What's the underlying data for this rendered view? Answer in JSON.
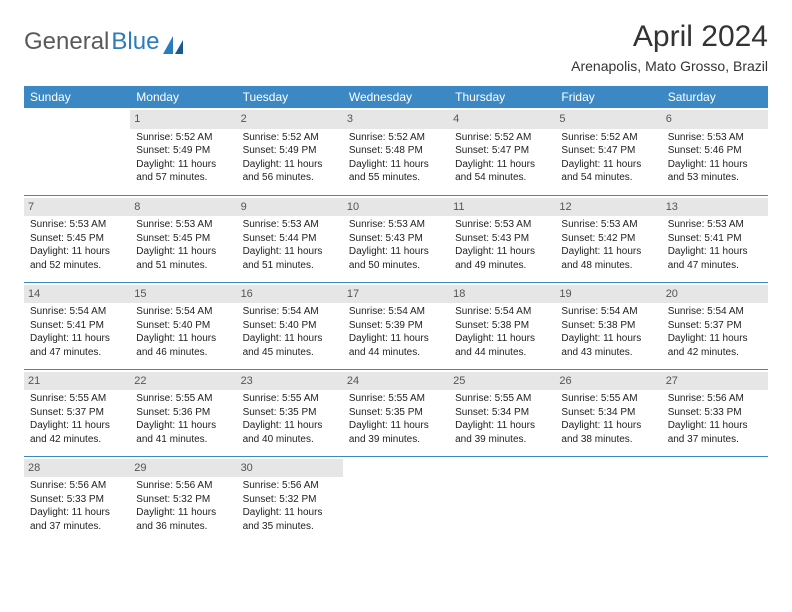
{
  "logo": {
    "text1": "General",
    "text2": "Blue"
  },
  "title": "April 2024",
  "subtitle": "Arenapolis, Mato Grosso, Brazil",
  "colors": {
    "header_bg": "#3b88c4",
    "header_fg": "#ffffff",
    "daynum_bg": "#e6e6e6",
    "row_border": "#3b88c4",
    "logo_blue": "#2b7bbf"
  },
  "day_headers": [
    "Sunday",
    "Monday",
    "Tuesday",
    "Wednesday",
    "Thursday",
    "Friday",
    "Saturday"
  ],
  "weeks": [
    [
      null,
      {
        "n": "1",
        "sr": "Sunrise: 5:52 AM",
        "ss": "Sunset: 5:49 PM",
        "dl1": "Daylight: 11 hours",
        "dl2": "and 57 minutes."
      },
      {
        "n": "2",
        "sr": "Sunrise: 5:52 AM",
        "ss": "Sunset: 5:49 PM",
        "dl1": "Daylight: 11 hours",
        "dl2": "and 56 minutes."
      },
      {
        "n": "3",
        "sr": "Sunrise: 5:52 AM",
        "ss": "Sunset: 5:48 PM",
        "dl1": "Daylight: 11 hours",
        "dl2": "and 55 minutes."
      },
      {
        "n": "4",
        "sr": "Sunrise: 5:52 AM",
        "ss": "Sunset: 5:47 PM",
        "dl1": "Daylight: 11 hours",
        "dl2": "and 54 minutes."
      },
      {
        "n": "5",
        "sr": "Sunrise: 5:52 AM",
        "ss": "Sunset: 5:47 PM",
        "dl1": "Daylight: 11 hours",
        "dl2": "and 54 minutes."
      },
      {
        "n": "6",
        "sr": "Sunrise: 5:53 AM",
        "ss": "Sunset: 5:46 PM",
        "dl1": "Daylight: 11 hours",
        "dl2": "and 53 minutes."
      }
    ],
    [
      {
        "n": "7",
        "sr": "Sunrise: 5:53 AM",
        "ss": "Sunset: 5:45 PM",
        "dl1": "Daylight: 11 hours",
        "dl2": "and 52 minutes."
      },
      {
        "n": "8",
        "sr": "Sunrise: 5:53 AM",
        "ss": "Sunset: 5:45 PM",
        "dl1": "Daylight: 11 hours",
        "dl2": "and 51 minutes."
      },
      {
        "n": "9",
        "sr": "Sunrise: 5:53 AM",
        "ss": "Sunset: 5:44 PM",
        "dl1": "Daylight: 11 hours",
        "dl2": "and 51 minutes."
      },
      {
        "n": "10",
        "sr": "Sunrise: 5:53 AM",
        "ss": "Sunset: 5:43 PM",
        "dl1": "Daylight: 11 hours",
        "dl2": "and 50 minutes."
      },
      {
        "n": "11",
        "sr": "Sunrise: 5:53 AM",
        "ss": "Sunset: 5:43 PM",
        "dl1": "Daylight: 11 hours",
        "dl2": "and 49 minutes."
      },
      {
        "n": "12",
        "sr": "Sunrise: 5:53 AM",
        "ss": "Sunset: 5:42 PM",
        "dl1": "Daylight: 11 hours",
        "dl2": "and 48 minutes."
      },
      {
        "n": "13",
        "sr": "Sunrise: 5:53 AM",
        "ss": "Sunset: 5:41 PM",
        "dl1": "Daylight: 11 hours",
        "dl2": "and 47 minutes."
      }
    ],
    [
      {
        "n": "14",
        "sr": "Sunrise: 5:54 AM",
        "ss": "Sunset: 5:41 PM",
        "dl1": "Daylight: 11 hours",
        "dl2": "and 47 minutes."
      },
      {
        "n": "15",
        "sr": "Sunrise: 5:54 AM",
        "ss": "Sunset: 5:40 PM",
        "dl1": "Daylight: 11 hours",
        "dl2": "and 46 minutes."
      },
      {
        "n": "16",
        "sr": "Sunrise: 5:54 AM",
        "ss": "Sunset: 5:40 PM",
        "dl1": "Daylight: 11 hours",
        "dl2": "and 45 minutes."
      },
      {
        "n": "17",
        "sr": "Sunrise: 5:54 AM",
        "ss": "Sunset: 5:39 PM",
        "dl1": "Daylight: 11 hours",
        "dl2": "and 44 minutes."
      },
      {
        "n": "18",
        "sr": "Sunrise: 5:54 AM",
        "ss": "Sunset: 5:38 PM",
        "dl1": "Daylight: 11 hours",
        "dl2": "and 44 minutes."
      },
      {
        "n": "19",
        "sr": "Sunrise: 5:54 AM",
        "ss": "Sunset: 5:38 PM",
        "dl1": "Daylight: 11 hours",
        "dl2": "and 43 minutes."
      },
      {
        "n": "20",
        "sr": "Sunrise: 5:54 AM",
        "ss": "Sunset: 5:37 PM",
        "dl1": "Daylight: 11 hours",
        "dl2": "and 42 minutes."
      }
    ],
    [
      {
        "n": "21",
        "sr": "Sunrise: 5:55 AM",
        "ss": "Sunset: 5:37 PM",
        "dl1": "Daylight: 11 hours",
        "dl2": "and 42 minutes."
      },
      {
        "n": "22",
        "sr": "Sunrise: 5:55 AM",
        "ss": "Sunset: 5:36 PM",
        "dl1": "Daylight: 11 hours",
        "dl2": "and 41 minutes."
      },
      {
        "n": "23",
        "sr": "Sunrise: 5:55 AM",
        "ss": "Sunset: 5:35 PM",
        "dl1": "Daylight: 11 hours",
        "dl2": "and 40 minutes."
      },
      {
        "n": "24",
        "sr": "Sunrise: 5:55 AM",
        "ss": "Sunset: 5:35 PM",
        "dl1": "Daylight: 11 hours",
        "dl2": "and 39 minutes."
      },
      {
        "n": "25",
        "sr": "Sunrise: 5:55 AM",
        "ss": "Sunset: 5:34 PM",
        "dl1": "Daylight: 11 hours",
        "dl2": "and 39 minutes."
      },
      {
        "n": "26",
        "sr": "Sunrise: 5:55 AM",
        "ss": "Sunset: 5:34 PM",
        "dl1": "Daylight: 11 hours",
        "dl2": "and 38 minutes."
      },
      {
        "n": "27",
        "sr": "Sunrise: 5:56 AM",
        "ss": "Sunset: 5:33 PM",
        "dl1": "Daylight: 11 hours",
        "dl2": "and 37 minutes."
      }
    ],
    [
      {
        "n": "28",
        "sr": "Sunrise: 5:56 AM",
        "ss": "Sunset: 5:33 PM",
        "dl1": "Daylight: 11 hours",
        "dl2": "and 37 minutes."
      },
      {
        "n": "29",
        "sr": "Sunrise: 5:56 AM",
        "ss": "Sunset: 5:32 PM",
        "dl1": "Daylight: 11 hours",
        "dl2": "and 36 minutes."
      },
      {
        "n": "30",
        "sr": "Sunrise: 5:56 AM",
        "ss": "Sunset: 5:32 PM",
        "dl1": "Daylight: 11 hours",
        "dl2": "and 35 minutes."
      },
      null,
      null,
      null,
      null
    ]
  ]
}
